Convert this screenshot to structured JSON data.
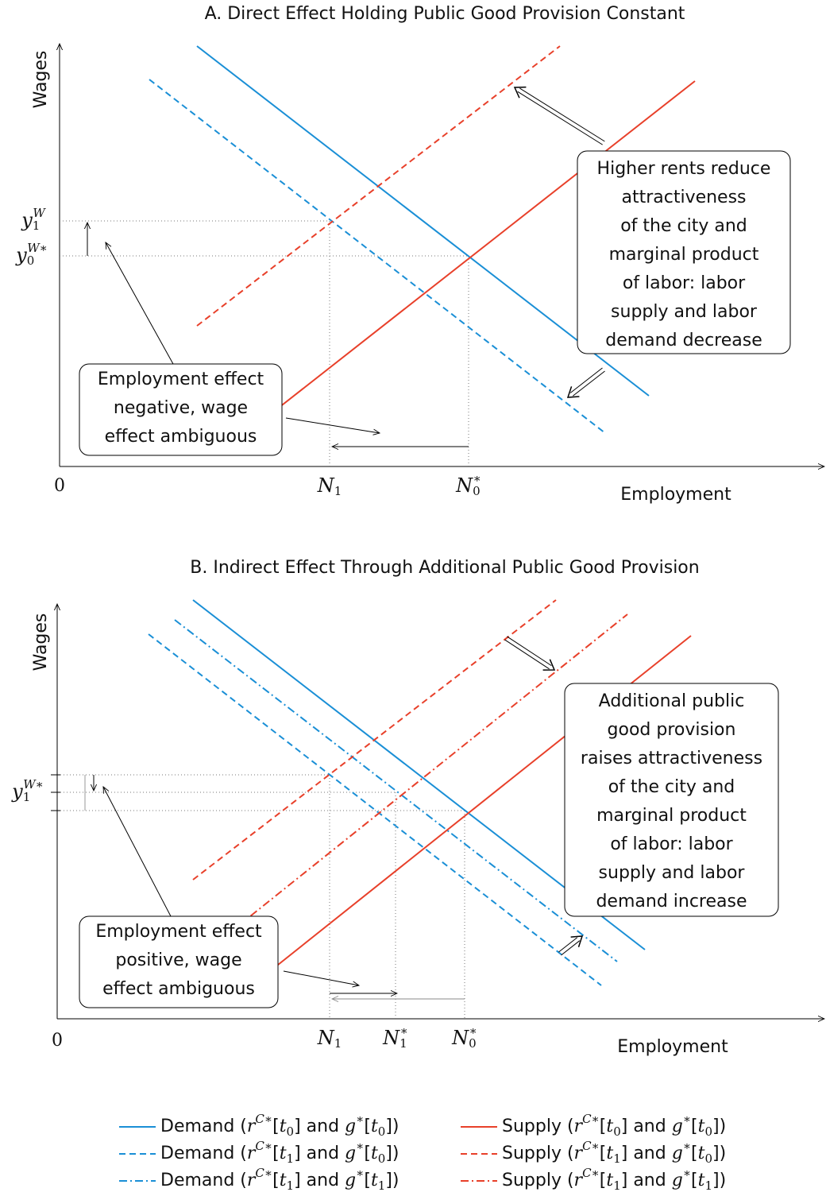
{
  "panel_a": {
    "title": "A. Direct Effect Holding Public Good Provision Constant",
    "y_axis_label": "Wages",
    "x_axis_label": "Employment",
    "origin_label": "0",
    "y_ticks": [
      [
        [
          "y",
          "i"
        ],
        [
          "1",
          "sub"
        ],
        [
          "W",
          "sup"
        ]
      ],
      [
        [
          "y",
          "i"
        ],
        [
          "0",
          "sub"
        ],
        [
          "W∗",
          "sup"
        ]
      ]
    ],
    "x_ticks": [
      [
        [
          "N",
          "i"
        ],
        [
          "1",
          "sub"
        ]
      ],
      [
        [
          "N",
          "i"
        ],
        [
          "0",
          "sub"
        ],
        [
          "∗",
          "sup"
        ]
      ]
    ],
    "annotations": [
      [
        "Higher rents reduce",
        "attractiveness",
        "of the city and",
        "marginal product",
        "of labor: labor",
        "supply and labor",
        "demand decrease"
      ],
      [
        "Employment effect",
        "negative, wage",
        "effect ambiguous"
      ]
    ]
  },
  "panel_b": {
    "title": "B. Indirect Effect Through Additional Public Good Provision",
    "y_axis_label": "Wages",
    "x_axis_label": "Employment",
    "origin_label": "0",
    "y_ticks": [
      [
        [
          "y",
          "i"
        ],
        [
          "1",
          "sub"
        ],
        [
          "W∗",
          "sup"
        ]
      ]
    ],
    "x_ticks": [
      [
        [
          "N",
          "i"
        ],
        [
          "1",
          "sub"
        ]
      ],
      [
        [
          "N",
          "i"
        ],
        [
          "1",
          "sub"
        ],
        [
          "∗",
          "sup"
        ]
      ],
      [
        [
          "N",
          "i"
        ],
        [
          "0",
          "sub"
        ],
        [
          "∗",
          "sup"
        ]
      ]
    ],
    "annotations": [
      [
        "Additional public",
        "good provision",
        "raises attractiveness",
        "of the city and",
        "marginal product",
        "of labor: labor",
        "supply and labor",
        "demand increase"
      ],
      [
        "Employment effect",
        "positive, wage",
        "effect ambiguous"
      ]
    ]
  },
  "legend": [
    {
      "color": "#1a8fd6",
      "dash": "solid",
      "label": [
        [
          "Demand (",
          ""
        ],
        [
          "r",
          "i"
        ],
        [
          "C∗",
          "sup"
        ],
        [
          "[",
          ""
        ],
        [
          "t",
          "i"
        ],
        [
          "0",
          "sub"
        ],
        [
          "] and ",
          ""
        ],
        [
          "g",
          "i"
        ],
        [
          "∗",
          "sup"
        ],
        [
          "[",
          ""
        ],
        [
          "t",
          "i"
        ],
        [
          "0",
          "sub"
        ],
        [
          "])",
          ""
        ]
      ]
    },
    {
      "color": "#e8402a",
      "dash": "solid",
      "label": [
        [
          "Supply (",
          ""
        ],
        [
          "r",
          "i"
        ],
        [
          "C∗",
          "sup"
        ],
        [
          "[",
          ""
        ],
        [
          "t",
          "i"
        ],
        [
          "0",
          "sub"
        ],
        [
          "] and ",
          ""
        ],
        [
          "g",
          "i"
        ],
        [
          "∗",
          "sup"
        ],
        [
          "[",
          ""
        ],
        [
          "t",
          "i"
        ],
        [
          "0",
          "sub"
        ],
        [
          "])",
          ""
        ]
      ]
    },
    {
      "color": "#1a8fd6",
      "dash": "dashed",
      "label": [
        [
          "Demand (",
          ""
        ],
        [
          "r",
          "i"
        ],
        [
          "C∗",
          "sup"
        ],
        [
          "[",
          ""
        ],
        [
          "t",
          "i"
        ],
        [
          "1",
          "sub"
        ],
        [
          "] and ",
          ""
        ],
        [
          "g",
          "i"
        ],
        [
          "∗",
          "sup"
        ],
        [
          "[",
          ""
        ],
        [
          "t",
          "i"
        ],
        [
          "0",
          "sub"
        ],
        [
          "])",
          ""
        ]
      ]
    },
    {
      "color": "#e8402a",
      "dash": "dashed",
      "label": [
        [
          "Supply (",
          ""
        ],
        [
          "r",
          "i"
        ],
        [
          "C∗",
          "sup"
        ],
        [
          "[",
          ""
        ],
        [
          "t",
          "i"
        ],
        [
          "1",
          "sub"
        ],
        [
          "] and ",
          ""
        ],
        [
          "g",
          "i"
        ],
        [
          "∗",
          "sup"
        ],
        [
          "[",
          ""
        ],
        [
          "t",
          "i"
        ],
        [
          "0",
          "sub"
        ],
        [
          "])",
          ""
        ]
      ]
    },
    {
      "color": "#1a8fd6",
      "dash": "dashdot",
      "label": [
        [
          "Demand (",
          ""
        ],
        [
          "r",
          "i"
        ],
        [
          "C∗",
          "sup"
        ],
        [
          "[",
          ""
        ],
        [
          "t",
          "i"
        ],
        [
          "1",
          "sub"
        ],
        [
          "] and ",
          ""
        ],
        [
          "g",
          "i"
        ],
        [
          "∗",
          "sup"
        ],
        [
          "[",
          ""
        ],
        [
          "t",
          "i"
        ],
        [
          "1",
          "sub"
        ],
        [
          "])",
          ""
        ]
      ]
    },
    {
      "color": "#e8402a",
      "dash": "dashdot",
      "label": [
        [
          "Supply (",
          ""
        ],
        [
          "r",
          "i"
        ],
        [
          "C∗",
          "sup"
        ],
        [
          "[",
          ""
        ],
        [
          "t",
          "i"
        ],
        [
          "1",
          "sub"
        ],
        [
          "] and ",
          ""
        ],
        [
          "g",
          "i"
        ],
        [
          "∗",
          "sup"
        ],
        [
          "[",
          ""
        ],
        [
          "t",
          "i"
        ],
        [
          "1",
          "sub"
        ],
        [
          "])",
          ""
        ]
      ]
    }
  ]
}
